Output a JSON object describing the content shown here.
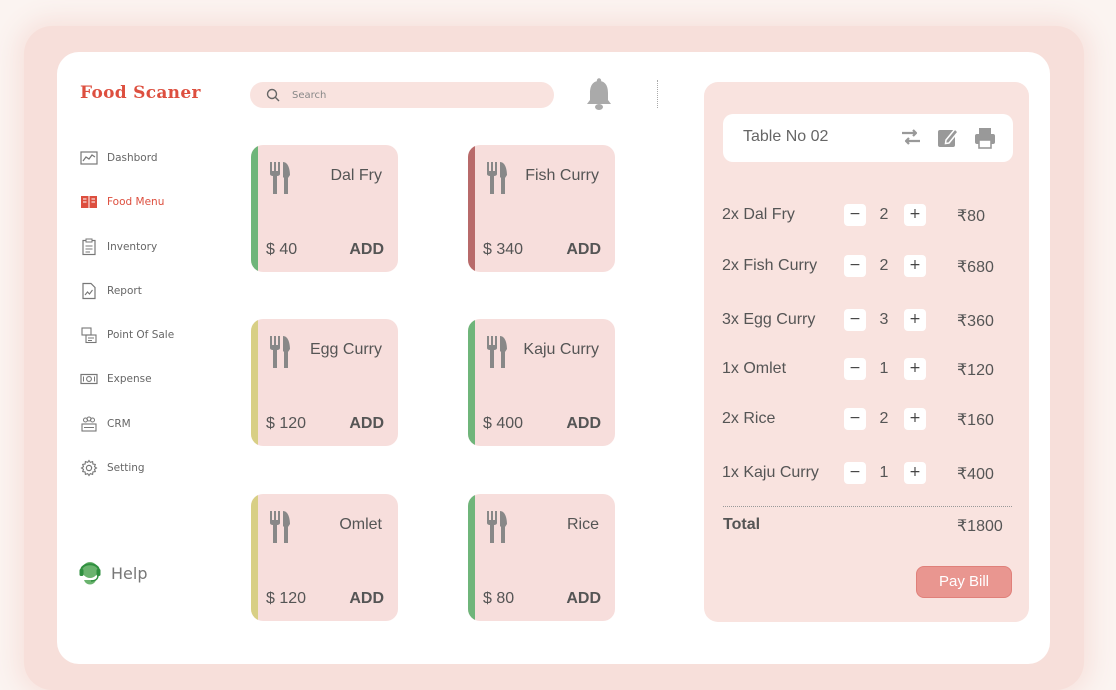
{
  "brand": {
    "name": "Food Scaner",
    "color": "#dd4f3f"
  },
  "sidebar": {
    "items": [
      {
        "label": "Dashbord",
        "icon": "chart-icon",
        "active": false
      },
      {
        "label": "Food Menu",
        "icon": "menu-book-icon",
        "active": true
      },
      {
        "label": "Inventory",
        "icon": "clipboard-icon",
        "active": false
      },
      {
        "label": "Report",
        "icon": "report-icon",
        "active": false
      },
      {
        "label": "Point Of Sale",
        "icon": "pos-icon",
        "active": false
      },
      {
        "label": "Expense",
        "icon": "money-icon",
        "active": false
      },
      {
        "label": "CRM",
        "icon": "crm-icon",
        "active": false
      },
      {
        "label": "Setting",
        "icon": "gear-icon",
        "active": false
      }
    ],
    "help_label": "Help"
  },
  "search": {
    "placeholder": "Search",
    "value": ""
  },
  "menu": {
    "add_label": "ADD",
    "items": [
      {
        "name": "Dal Fry",
        "price": "$ 40",
        "accent": "#6fb57a"
      },
      {
        "name": "Fish Curry",
        "price": "$ 340",
        "accent": "#b86a6a"
      },
      {
        "name": "Egg Curry",
        "price": "$ 120",
        "accent": "#d8cf85"
      },
      {
        "name": "Kaju Curry",
        "price": "$ 400",
        "accent": "#6fb57a"
      },
      {
        "name": "Omlet",
        "price": "$ 120",
        "accent": "#d8cf85"
      },
      {
        "name": "Rice",
        "price": "$ 80",
        "accent": "#6fb57a"
      }
    ]
  },
  "order": {
    "table_label": "Table No 02",
    "lines": [
      {
        "name": "2x Dal Fry",
        "qty": "2",
        "price": "₹80"
      },
      {
        "name": "2x Fish Curry",
        "qty": "2",
        "price": "₹680"
      },
      {
        "name": "3x Egg Curry",
        "qty": "3",
        "price": "₹360"
      },
      {
        "name": "1x Omlet",
        "qty": "1",
        "price": "₹120"
      },
      {
        "name": "2x Rice",
        "qty": "2",
        "price": "₹160"
      },
      {
        "name": "1x Kaju Curry",
        "qty": "1",
        "price": "₹400"
      }
    ],
    "minus": "−",
    "plus": "+",
    "total_label": "Total",
    "total_value": "₹1800",
    "pay_label": "Pay Bill"
  },
  "colors": {
    "pay_button": "#e99690",
    "panel_bg": "#f9e3df",
    "card_bg": "#f7dedc"
  }
}
